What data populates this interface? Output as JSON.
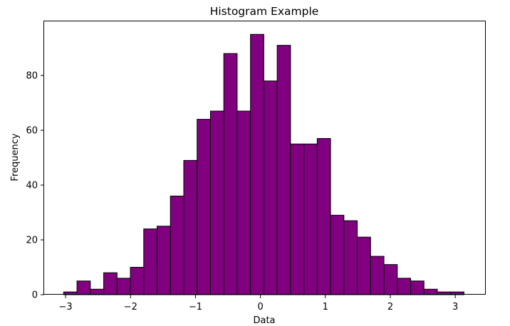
{
  "chart_data": {
    "type": "bar",
    "title": "Histogram Example",
    "xlabel": "Data",
    "ylabel": "Frequency",
    "bin_start": -3.03,
    "bin_width": 0.2055,
    "values": [
      1,
      5,
      2,
      8,
      6,
      10,
      24,
      25,
      36,
      49,
      64,
      67,
      88,
      67,
      95,
      78,
      91,
      55,
      55,
      57,
      29,
      27,
      21,
      14,
      11,
      6,
      5,
      2,
      1,
      1
    ],
    "xlim": [
      -3.33,
      3.47
    ],
    "ylim": [
      0,
      99.75
    ],
    "xticks": [
      -3,
      -2,
      -1,
      0,
      1,
      2,
      3
    ],
    "xtick_labels": [
      "−3",
      "−2",
      "−1",
      "0",
      "1",
      "2",
      "3"
    ],
    "yticks": [
      0,
      20,
      40,
      60,
      80
    ],
    "ytick_labels": [
      "0",
      "20",
      "40",
      "60",
      "80"
    ],
    "bar_color": "#800080",
    "edge_color": "#000000",
    "grid": false,
    "legend": "none"
  }
}
